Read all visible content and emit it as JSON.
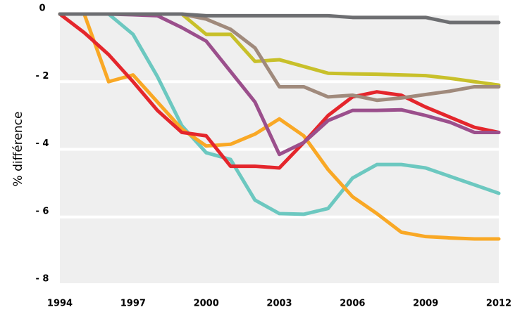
{
  "chart_data": {
    "type": "line",
    "y_label": "% différence",
    "x": [
      1994,
      1995,
      1996,
      1997,
      1998,
      1999,
      2000,
      2001,
      2002,
      2003,
      2004,
      2005,
      2006,
      2007,
      2008,
      2009,
      2010,
      2011,
      2012
    ],
    "xlim": [
      1994,
      2012
    ],
    "xticks": [
      1994,
      1997,
      2000,
      2003,
      2006,
      2009,
      2012
    ],
    "ylim": [
      -8,
      0
    ],
    "yticks": [
      {
        "value": 0,
        "label": "0"
      },
      {
        "value": -2,
        "label": "- 2"
      },
      {
        "value": -4,
        "label": "- 4"
      },
      {
        "value": -6,
        "label": "- 6"
      },
      {
        "value": -8,
        "label": "- 8"
      }
    ],
    "grid": true,
    "series": [
      {
        "color": "#6cc8c0",
        "values": [
          0,
          0,
          0,
          -0.6,
          -1.85,
          -3.3,
          -4.1,
          -4.3,
          -5.5,
          -5.9,
          -5.92,
          -5.75,
          -4.85,
          -4.45,
          -4.45,
          -4.55,
          -4.8,
          -5.05,
          -5.3
        ]
      },
      {
        "color": "#f9a825",
        "values": [
          0,
          0,
          -2.0,
          -1.8,
          -2.6,
          -3.4,
          -3.9,
          -3.85,
          -3.55,
          -3.1,
          -3.6,
          -4.6,
          -5.4,
          -5.9,
          -6.45,
          -6.58,
          -6.62,
          -6.65,
          -6.65
        ]
      },
      {
        "color": "#e4262c",
        "values": [
          0,
          -0.55,
          -1.2,
          -2.0,
          -2.85,
          -3.5,
          -3.6,
          -4.5,
          -4.5,
          -4.55,
          -3.8,
          -3.0,
          -2.45,
          -2.3,
          -2.4,
          -2.75,
          -3.05,
          -3.35,
          -3.5
        ]
      },
      {
        "color": "#9b4f8c",
        "values": [
          0,
          0,
          0,
          -0.02,
          -0.05,
          -0.4,
          -0.8,
          -1.7,
          -2.6,
          -4.15,
          -3.8,
          -3.15,
          -2.85,
          -2.85,
          -2.83,
          -3.0,
          -3.2,
          -3.5,
          -3.5
        ]
      },
      {
        "color": "#c8c02a",
        "values": [
          0,
          0,
          0,
          0,
          0,
          0,
          -0.6,
          -0.6,
          -1.4,
          -1.35,
          -1.55,
          -1.75,
          -1.77,
          -1.78,
          -1.8,
          -1.82,
          -1.9,
          -2.0,
          -2.1
        ]
      },
      {
        "color": "#a08a7c",
        "values": [
          0,
          0,
          0,
          0,
          0,
          0,
          -0.15,
          -0.45,
          -1.0,
          -2.15,
          -2.15,
          -2.45,
          -2.4,
          -2.55,
          -2.48,
          -2.38,
          -2.28,
          -2.15,
          -2.15
        ]
      },
      {
        "color": "#6d6e71",
        "values": [
          0,
          0,
          0,
          0,
          0,
          0,
          -0.05,
          -0.05,
          -0.05,
          -0.05,
          -0.05,
          -0.05,
          -0.1,
          -0.1,
          -0.1,
          -0.1,
          -0.25,
          -0.25,
          -0.25
        ]
      }
    ]
  }
}
